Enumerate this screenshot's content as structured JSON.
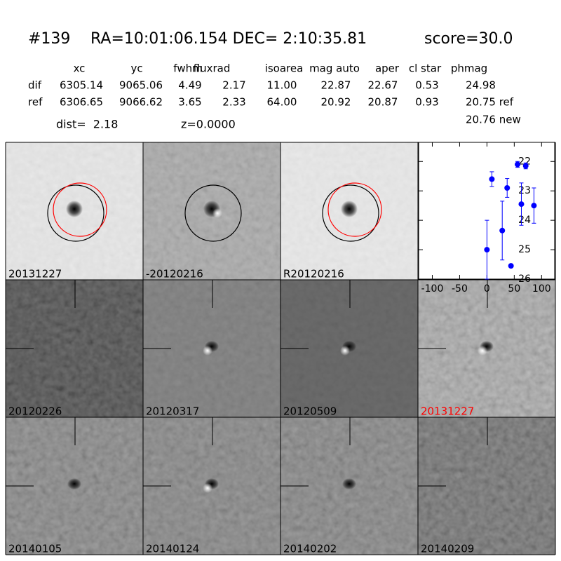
{
  "header": {
    "id": "#139",
    "coords": "RA=10:01:06.154 DEC= 2:10:35.81",
    "score": "score=30.0"
  },
  "table": {
    "columns": [
      "xc",
      "yc",
      "fwhm",
      "fluxrad",
      "isoarea",
      "mag auto",
      "aper",
      "cl star",
      "phmag"
    ],
    "rows": [
      {
        "label": "dif",
        "values": [
          "6305.14",
          "9065.06",
          "4.49",
          "2.17",
          "11.00",
          "22.87",
          "22.67",
          "0.53",
          "24.98"
        ]
      },
      {
        "label": "ref",
        "values": [
          "6306.65",
          "9066.62",
          "3.65",
          "2.33",
          "64.00",
          "20.92",
          "20.87",
          "0.93",
          "20.75 ref"
        ]
      }
    ],
    "extra": "20.76 new"
  },
  "dist": "dist=  2.18",
  "z": "z=0.0000",
  "stamps": [
    "20131227",
    "-20120216",
    "R20120216",
    "20120226",
    "20120317",
    "20120509",
    "20131227",
    "20140105",
    "20140124",
    "20140202",
    "20140209"
  ],
  "chart_data": {
    "type": "errorbar",
    "x": [
      0,
      9,
      28,
      37,
      44,
      56,
      63,
      71,
      86
    ],
    "series": [
      {
        "color": "#0000ff",
        "values": [
          25.0,
          22.6,
          24.35,
          22.9,
          25.55,
          22.1,
          23.45,
          22.15,
          23.5
        ],
        "errors": [
          1.0,
          0.25,
          1.0,
          0.32,
          0.05,
          0.1,
          0.72,
          0.1,
          0.6
        ]
      }
    ],
    "xlim": [
      -125,
      124
    ],
    "ylim": [
      26,
      21.35
    ],
    "xticks": [
      -100,
      -50,
      0,
      50,
      100
    ],
    "yticks": [
      22,
      23,
      24,
      25,
      26
    ]
  }
}
